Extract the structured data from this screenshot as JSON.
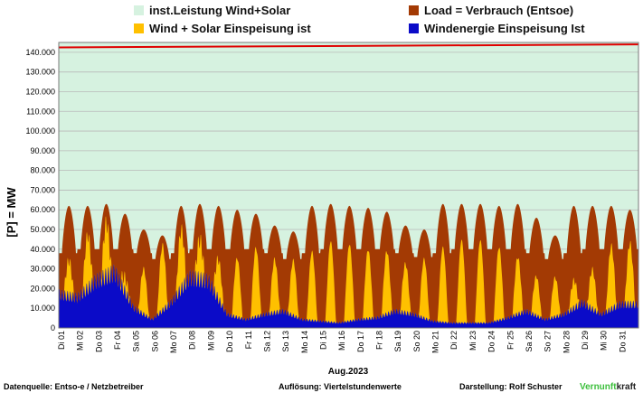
{
  "chart_data": {
    "type": "area",
    "ylabel": "[P] = MW",
    "xlabel": "Aug.2023",
    "ylim": [
      0,
      145000
    ],
    "yticks": [
      0,
      10000,
      20000,
      30000,
      40000,
      50000,
      60000,
      70000,
      80000,
      90000,
      100000,
      110000,
      120000,
      130000,
      140000
    ],
    "ytick_labels": [
      "0",
      "10.000",
      "20.000",
      "30.000",
      "40.000",
      "50.000",
      "60.000",
      "70.000",
      "80.000",
      "90.000",
      "100.000",
      "110.000",
      "120.000",
      "130.000",
      "140.000"
    ],
    "grid": true,
    "legend_position": "top",
    "days": [
      "Di 01",
      "Mi 02",
      "Do 03",
      "Fr 04",
      "Sa 05",
      "So 06",
      "Mo 07",
      "Di 08",
      "Mi 09",
      "Do 10",
      "Fr 11",
      "Sa 12",
      "So 13",
      "Mo 14",
      "Di 15",
      "Mi 16",
      "Do 17",
      "Fr 18",
      "Sa 19",
      "So 20",
      "Mo 21",
      "Di 22",
      "Mi 23",
      "Do 24",
      "Fr 25",
      "Sa 26",
      "So 27",
      "Mo 28",
      "Di 29",
      "Mi 30",
      "Do 31"
    ],
    "series": [
      {
        "name": "inst.Leistung Wind+Solar",
        "color": "#d6f2e0",
        "key": "installed"
      },
      {
        "name": "Load =  Verbrauch (Entsoe)",
        "color": "#a33a04",
        "key": "load"
      },
      {
        "name": "Wind + Solar Einspeisung ist",
        "color": "#ffc000",
        "key": "windsolar"
      },
      {
        "name": "Windenergie Einspeisung Ist",
        "color": "#0b0bc8",
        "key": "wind"
      }
    ],
    "installed_line_color": "#e00000",
    "installed_mw": {
      "start": 142500,
      "end": 144000
    },
    "daily_load_peak_mw": [
      62000,
      62000,
      63000,
      58000,
      50000,
      47000,
      62000,
      63000,
      62000,
      60000,
      58000,
      52000,
      49000,
      62000,
      63000,
      62000,
      61000,
      59000,
      52000,
      50000,
      63000,
      63000,
      63000,
      62000,
      63000,
      56000,
      47000,
      62000,
      62000,
      62000,
      60000
    ],
    "daily_load_min_mw": [
      38000,
      40000,
      40000,
      40000,
      38000,
      35000,
      38000,
      40000,
      40000,
      40000,
      40000,
      38000,
      35000,
      38000,
      40000,
      40000,
      40000,
      40000,
      38000,
      36000,
      38000,
      40000,
      40000,
      40000,
      40000,
      38000,
      35000,
      38000,
      40000,
      40000,
      40000
    ],
    "daily_wind_solar_peak_mw": [
      38000,
      45000,
      55000,
      40000,
      35000,
      38000,
      45000,
      50000,
      48000,
      38000,
      40000,
      35000,
      38000,
      40000,
      45000,
      42000,
      40000,
      38000,
      35000,
      38000,
      42000,
      45000,
      45000,
      40000,
      35000,
      30000,
      25000,
      22000,
      35000,
      40000,
      45000
    ],
    "daily_wind_mw": [
      20000,
      18000,
      28000,
      33000,
      12000,
      5000,
      15000,
      30000,
      28000,
      8000,
      5000,
      8000,
      10000,
      5000,
      4000,
      3000,
      5000,
      6000,
      10000,
      8000,
      4000,
      3000,
      3000,
      3000,
      6000,
      10000,
      5000,
      8000,
      15000,
      8000,
      14000
    ]
  },
  "legend": {
    "installed": "inst.Leistung Wind+Solar",
    "load": "Load =  Verbrauch (Entsoe)",
    "windsolar": "Wind + Solar Einspeisung ist",
    "wind": "Windenergie Einspeisung Ist"
  },
  "footer": {
    "source": "Datenquelle:  Entso-e  / Netzbetreiber",
    "resolution": "Auflösung: Viertelstundenwerte",
    "author": "Darstellung:  Rolf Schuster",
    "brand_a": "Vernunft",
    "brand_b": "kraft"
  }
}
